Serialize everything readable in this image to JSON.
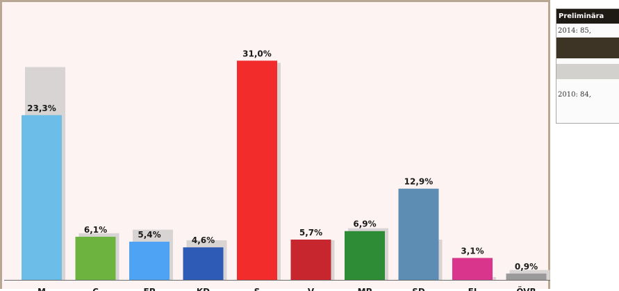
{
  "chart_data": {
    "type": "bar",
    "categories": [
      "M",
      "C",
      "FP",
      "KD",
      "S",
      "V",
      "MP",
      "SD",
      "FI",
      "ÖVR"
    ],
    "series": [
      {
        "values": [
          23.3,
          6.1,
          5.4,
          4.6,
          31.0,
          5.7,
          6.9,
          12.9,
          3.1,
          0.9
        ],
        "labels": [
          "23,3%",
          "6,1%",
          "5,4%",
          "4,6%",
          "31,0%",
          "5,7%",
          "6,9%",
          "12,9%",
          "3,1%",
          "0,9%"
        ],
        "colors": [
          "#6cbde8",
          "#6db33f",
          "#4fa3f4",
          "#2e5bb5",
          "#f22b2b",
          "#c8262e",
          "#2e8b36",
          "#5e8db4",
          "#d9358c",
          "#9a9a9a"
        ]
      },
      {
        "values": [
          30.1,
          6.6,
          7.1,
          5.6,
          30.7,
          5.6,
          7.3,
          5.7,
          0.4,
          1.4
        ],
        "color": "#d8d4d4"
      }
    ],
    "ylim": [
      0,
      33
    ],
    "grid": false,
    "legend": "none"
  },
  "side_table": {
    "header": "Preliminära",
    "line_2014": "2014: 85,",
    "line_2010": "2010: 84,"
  }
}
